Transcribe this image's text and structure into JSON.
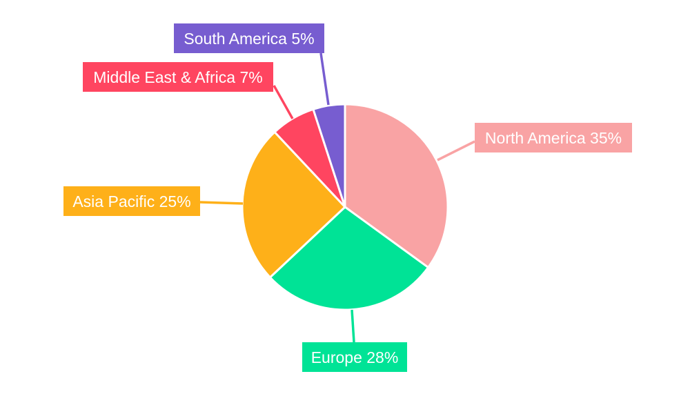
{
  "chart_data": {
    "type": "pie",
    "title": "",
    "start_angle": "12 o'clock, clockwise",
    "categories": [
      "North America",
      "Europe",
      "Asia Pacific",
      "Middle East & Africa",
      "South America"
    ],
    "values": [
      35,
      28,
      25,
      7,
      5
    ],
    "unit": "%",
    "labels": [
      "North America 35%",
      "Europe 28%",
      "Asia Pacific 25%",
      "Middle East & Africa 7%",
      "South America 5%"
    ],
    "colors": [
      "#F9A3A4",
      "#00E396",
      "#FEB019",
      "#FF4560",
      "#775DD0"
    ],
    "legend": "none (callout labels)"
  }
}
